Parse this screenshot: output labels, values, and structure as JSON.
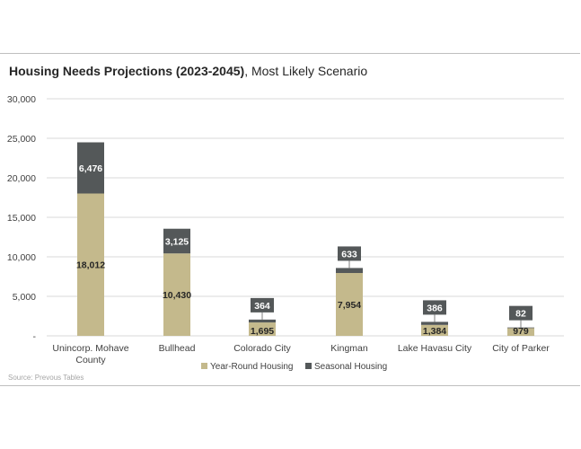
{
  "title": {
    "bold": "Housing Needs Projections (2023-2045)",
    "rest": ", Most Likely Scenario"
  },
  "source": "Source: Prevous Tables",
  "colors": {
    "year_round": "#c4b98c",
    "seasonal": "#545859",
    "grid": "#d9d9d9",
    "label_box": "#545859"
  },
  "chart_data": {
    "type": "bar",
    "stacked": true,
    "categories": [
      "Unincorp. Mohave County",
      "Bullhead",
      "Colorado City",
      "Kingman",
      "Lake Havasu City",
      "City of Parker"
    ],
    "category_lines": [
      [
        "Unincorp. Mohave",
        "County"
      ],
      [
        "Bullhead"
      ],
      [
        "Colorado City"
      ],
      [
        "Kingman"
      ],
      [
        "Lake Havasu City"
      ],
      [
        "City of Parker"
      ]
    ],
    "series": [
      {
        "name": "Year-Round Housing",
        "values": [
          18012,
          10430,
          1695,
          7954,
          1384,
          979
        ],
        "labels": [
          "18,012",
          "10,430",
          "1,695",
          "7,954",
          "1,384",
          "979"
        ]
      },
      {
        "name": "Seasonal Housing",
        "values": [
          6476,
          3125,
          364,
          633,
          386,
          82
        ],
        "labels": [
          "6,476",
          "3,125",
          "364",
          "633",
          "386",
          "82"
        ]
      }
    ],
    "ylim": [
      0,
      30000
    ],
    "yticks": [
      0,
      5000,
      10000,
      15000,
      20000,
      25000,
      30000
    ],
    "ytick_labels": [
      "-",
      "5,000",
      "10,000",
      "15,000",
      "20,000",
      "25,000",
      "30,000"
    ],
    "grid": true,
    "legend": "bottom"
  }
}
